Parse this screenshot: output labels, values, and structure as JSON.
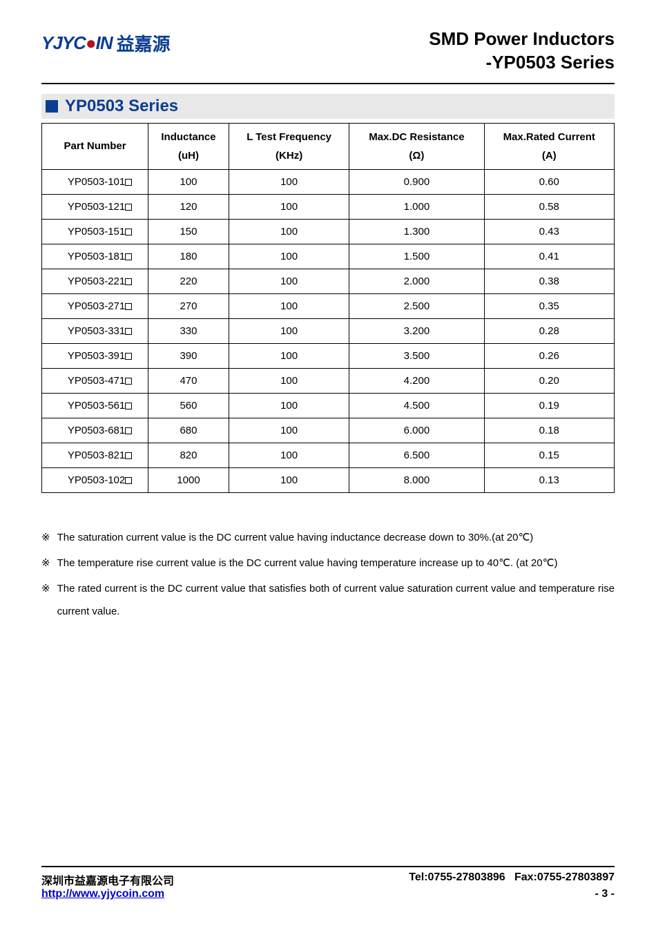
{
  "header": {
    "logo_latin": "YJYC",
    "logo_latin2": "IN",
    "logo_cn": "益嘉源",
    "title_line1": "SMD Power Inductors",
    "title_line2": "-YP0503 Series"
  },
  "section": {
    "title": "YP0503 Series"
  },
  "table": {
    "columns": [
      {
        "label": "Part Number",
        "unit": ""
      },
      {
        "label": "Inductance",
        "unit": "(uH)"
      },
      {
        "label": "L Test Frequency",
        "unit": "(KHz)"
      },
      {
        "label": "Max.DC Resistance",
        "unit": "(Ω)"
      },
      {
        "label": "Max.Rated Current",
        "unit": "(A)"
      }
    ],
    "rows": [
      {
        "part": "YP0503-101",
        "ind": "100",
        "freq": "100",
        "dcr": "0.900",
        "cur": "0.60"
      },
      {
        "part": "YP0503-121",
        "ind": "120",
        "freq": "100",
        "dcr": "1.000",
        "cur": "0.58"
      },
      {
        "part": "YP0503-151",
        "ind": "150",
        "freq": "100",
        "dcr": "1.300",
        "cur": "0.43"
      },
      {
        "part": "YP0503-181",
        "ind": "180",
        "freq": "100",
        "dcr": "1.500",
        "cur": "0.41"
      },
      {
        "part": "YP0503-221",
        "ind": "220",
        "freq": "100",
        "dcr": "2.000",
        "cur": "0.38"
      },
      {
        "part": "YP0503-271",
        "ind": "270",
        "freq": "100",
        "dcr": "2.500",
        "cur": "0.35"
      },
      {
        "part": "YP0503-331",
        "ind": "330",
        "freq": "100",
        "dcr": "3.200",
        "cur": "0.28"
      },
      {
        "part": "YP0503-391",
        "ind": "390",
        "freq": "100",
        "dcr": "3.500",
        "cur": "0.26"
      },
      {
        "part": "YP0503-471",
        "ind": "470",
        "freq": "100",
        "dcr": "4.200",
        "cur": "0.20"
      },
      {
        "part": "YP0503-561",
        "ind": "560",
        "freq": "100",
        "dcr": "4.500",
        "cur": "0.19"
      },
      {
        "part": "YP0503-681",
        "ind": "680",
        "freq": "100",
        "dcr": "6.000",
        "cur": "0.18"
      },
      {
        "part": "YP0503-821",
        "ind": "820",
        "freq": "100",
        "dcr": "6.500",
        "cur": "0.15"
      },
      {
        "part": "YP0503-102",
        "ind": "1000",
        "freq": "100",
        "dcr": "8.000",
        "cur": "0.13"
      }
    ]
  },
  "notes": {
    "mark": "※",
    "items": [
      "The saturation current value is the DC current value having inductance decrease down to 30%.(at 20℃)",
      "The temperature rise current value is the DC current value having temperature increase up to 40℃. (at 20℃)",
      "The rated current is the DC current value that satisfies both of current value saturation current value and temperature rise current value."
    ]
  },
  "footer": {
    "company": "深圳市益嘉源电子有限公司",
    "tel": "Tel:0755-27803896",
    "fax": "Fax:0755-27803897",
    "url": "http://www.yjycoin.com",
    "page": "- 3 -"
  }
}
